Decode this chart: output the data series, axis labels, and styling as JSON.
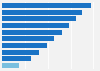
{
  "values": [
    97,
    88,
    81,
    73,
    66,
    57,
    49,
    40,
    32,
    19
  ],
  "bar_colors": [
    "#1a73c5",
    "#1a73c5",
    "#1a73c5",
    "#1a73c5",
    "#1a73c5",
    "#1a73c5",
    "#1a73c5",
    "#1a73c5",
    "#1a73c5",
    "#7abfdf"
  ],
  "background_color": "#f2f2f2",
  "xlim": [
    0,
    105
  ],
  "bar_height": 0.72,
  "grid_color": "#ffffff",
  "grid_linewidth": 0.6
}
